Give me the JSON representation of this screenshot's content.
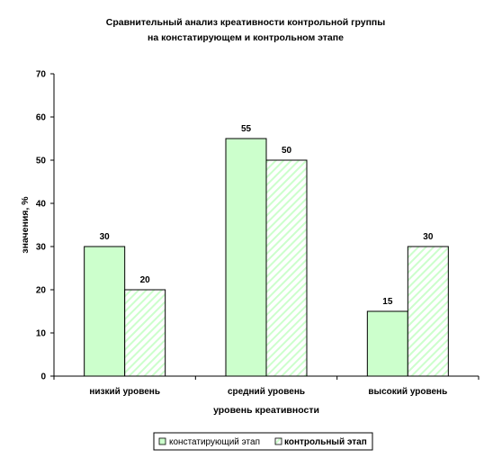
{
  "chart_data": {
    "type": "bar",
    "title": [
      "Сравнительный анализ креативности контрольной группы",
      "на констатирующем и контрольном этапе"
    ],
    "xlabel": "уровень креативности",
    "ylabel": "значения, %",
    "categories": [
      "низкий уровень",
      "средний уровень",
      "высокий уровень"
    ],
    "series": [
      {
        "name": "констатирующий этап",
        "values": [
          30,
          55,
          15
        ],
        "color": "#ccffcc",
        "pattern": "solid"
      },
      {
        "name": "контрольный этап",
        "values": [
          20,
          50,
          30
        ],
        "color": "#ccffcc",
        "pattern": "diagonal-hatch"
      }
    ],
    "ylim": [
      0,
      70
    ],
    "yticks": [
      0,
      10,
      20,
      30,
      40,
      50,
      60,
      70
    ],
    "data_labels": true,
    "grid": false,
    "legend_position": "bottom"
  }
}
